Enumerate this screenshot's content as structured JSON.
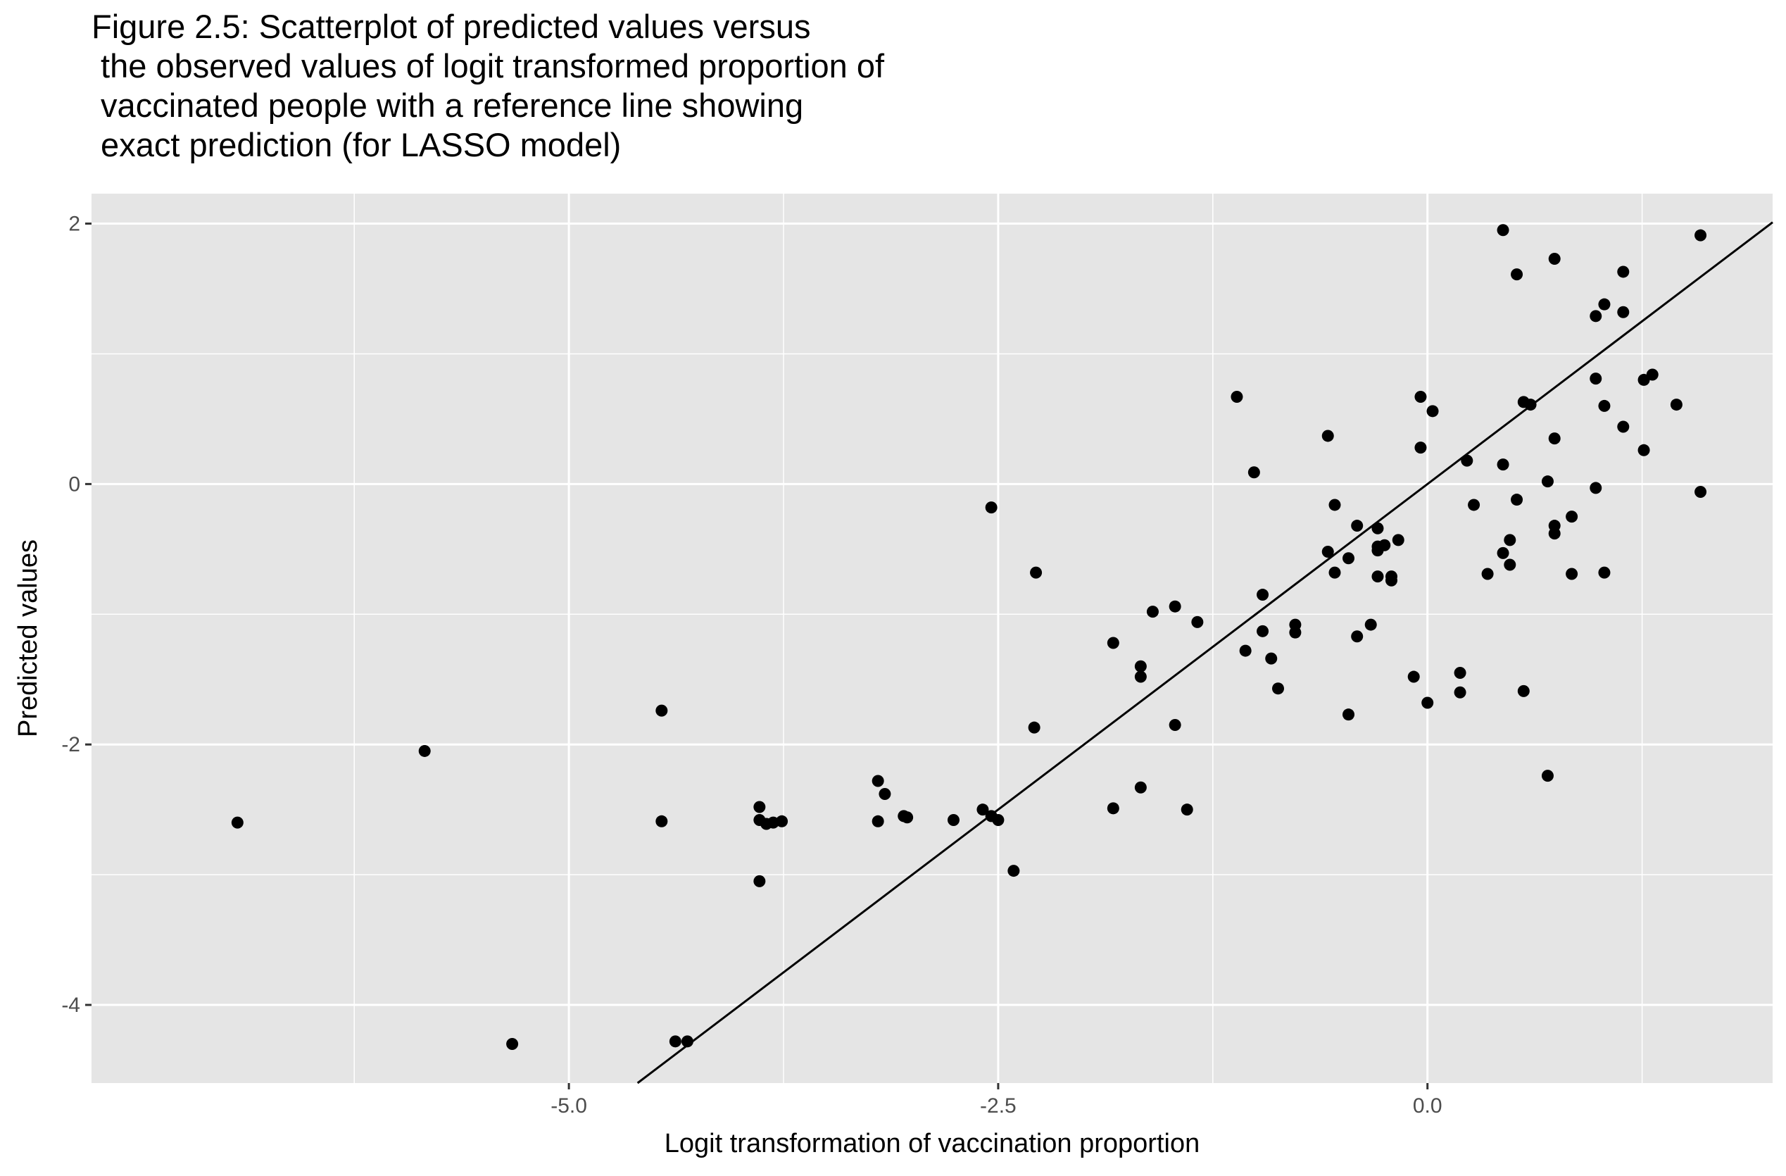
{
  "title_lines": [
    "Figure 2.5: Scatterplot of predicted values versus",
    " the observed values of logit transformed proportion of",
    " vaccinated people with a reference line showing",
    " exact prediction (for LASSO model)"
  ],
  "chart_data": {
    "type": "scatter",
    "xlabel": "Logit transformation of vaccination proportion",
    "ylabel": "Predicted values",
    "xlim": [
      -7.78,
      2.01
    ],
    "ylim": [
      -4.6,
      2.23
    ],
    "x_ticks": [
      -5.0,
      -2.5,
      0.0
    ],
    "x_tick_labels": [
      "-5.0",
      "-2.5",
      "0.0"
    ],
    "y_ticks": [
      -4,
      -2,
      0,
      2
    ],
    "y_tick_labels": [
      "-4",
      "-2",
      "0",
      "2"
    ],
    "grid": true,
    "panel_background": "#e5e5e5",
    "grid_color": "#ffffff",
    "point_color": "#000000",
    "reference_line": {
      "slope": 1,
      "intercept": 0,
      "color": "#000000"
    },
    "points": [
      [
        -6.93,
        -2.6
      ],
      [
        -5.84,
        -2.05
      ],
      [
        -5.33,
        -4.3
      ],
      [
        -4.38,
        -4.28
      ],
      [
        -4.31,
        -4.28
      ],
      [
        -4.46,
        -1.74
      ],
      [
        -4.46,
        -2.59
      ],
      [
        -3.89,
        -2.48
      ],
      [
        -3.89,
        -2.58
      ],
      [
        -3.85,
        -2.61
      ],
      [
        -3.81,
        -2.6
      ],
      [
        -3.76,
        -2.59
      ],
      [
        -3.89,
        -3.05
      ],
      [
        -3.2,
        -2.28
      ],
      [
        -3.16,
        -2.38
      ],
      [
        -3.2,
        -2.59
      ],
      [
        -3.05,
        -2.55
      ],
      [
        -3.03,
        -2.56
      ],
      [
        -2.76,
        -2.58
      ],
      [
        -2.59,
        -2.5
      ],
      [
        -2.54,
        -2.55
      ],
      [
        -2.5,
        -2.58
      ],
      [
        -2.54,
        -0.18
      ],
      [
        -2.28,
        -0.68
      ],
      [
        -2.29,
        -1.87
      ],
      [
        -2.41,
        -2.97
      ],
      [
        -1.83,
        -1.22
      ],
      [
        -1.83,
        -2.49
      ],
      [
        -1.67,
        -1.4
      ],
      [
        -1.67,
        -1.48
      ],
      [
        -1.6,
        -0.98
      ],
      [
        -1.67,
        -2.33
      ],
      [
        -1.47,
        -0.94
      ],
      [
        -1.47,
        -1.85
      ],
      [
        -1.4,
        -2.5
      ],
      [
        -1.34,
        -1.06
      ],
      [
        -1.11,
        0.67
      ],
      [
        -1.06,
        -1.28
      ],
      [
        -1.01,
        0.09
      ],
      [
        -0.96,
        -0.85
      ],
      [
        -0.96,
        -1.13
      ],
      [
        -0.91,
        -1.34
      ],
      [
        -0.87,
        -1.57
      ],
      [
        -0.77,
        -1.08
      ],
      [
        -0.77,
        -1.14
      ],
      [
        -0.58,
        0.37
      ],
      [
        -0.58,
        -0.52
      ],
      [
        -0.54,
        -0.16
      ],
      [
        -0.54,
        -0.68
      ],
      [
        -0.46,
        -0.57
      ],
      [
        -0.46,
        -1.77
      ],
      [
        -0.41,
        -0.32
      ],
      [
        -0.41,
        -1.17
      ],
      [
        -0.33,
        -1.08
      ],
      [
        -0.29,
        -0.34
      ],
      [
        -0.29,
        -0.48
      ],
      [
        -0.29,
        -0.51
      ],
      [
        -0.29,
        -0.71
      ],
      [
        -0.25,
        -0.47
      ],
      [
        -0.21,
        -0.71
      ],
      [
        -0.21,
        -0.74
      ],
      [
        -0.17,
        -0.43
      ],
      [
        -0.08,
        -1.48
      ],
      [
        -0.04,
        0.67
      ],
      [
        -0.04,
        0.28
      ],
      [
        0.0,
        -1.68
      ],
      [
        0.03,
        0.56
      ],
      [
        0.19,
        -1.45
      ],
      [
        0.19,
        -1.6
      ],
      [
        0.23,
        0.18
      ],
      [
        0.27,
        -0.16
      ],
      [
        0.35,
        -0.69
      ],
      [
        0.44,
        1.95
      ],
      [
        0.44,
        0.15
      ],
      [
        0.44,
        -0.53
      ],
      [
        0.48,
        -0.43
      ],
      [
        0.48,
        -0.62
      ],
      [
        0.52,
        1.61
      ],
      [
        0.52,
        -0.12
      ],
      [
        0.56,
        0.63
      ],
      [
        0.56,
        -1.59
      ],
      [
        0.6,
        0.61
      ],
      [
        0.7,
        0.02
      ],
      [
        0.7,
        -2.24
      ],
      [
        0.74,
        1.73
      ],
      [
        0.74,
        0.35
      ],
      [
        0.74,
        -0.32
      ],
      [
        0.74,
        -0.38
      ],
      [
        0.84,
        -0.25
      ],
      [
        0.84,
        -0.69
      ],
      [
        0.98,
        1.29
      ],
      [
        0.98,
        0.81
      ],
      [
        0.98,
        -0.03
      ],
      [
        1.03,
        1.38
      ],
      [
        1.03,
        0.6
      ],
      [
        1.03,
        -0.68
      ],
      [
        1.14,
        1.63
      ],
      [
        1.14,
        1.32
      ],
      [
        1.14,
        0.44
      ],
      [
        1.26,
        0.8
      ],
      [
        1.26,
        0.26
      ],
      [
        1.31,
        0.84
      ],
      [
        1.45,
        0.61
      ],
      [
        1.59,
        1.91
      ],
      [
        1.59,
        -0.06
      ]
    ]
  }
}
